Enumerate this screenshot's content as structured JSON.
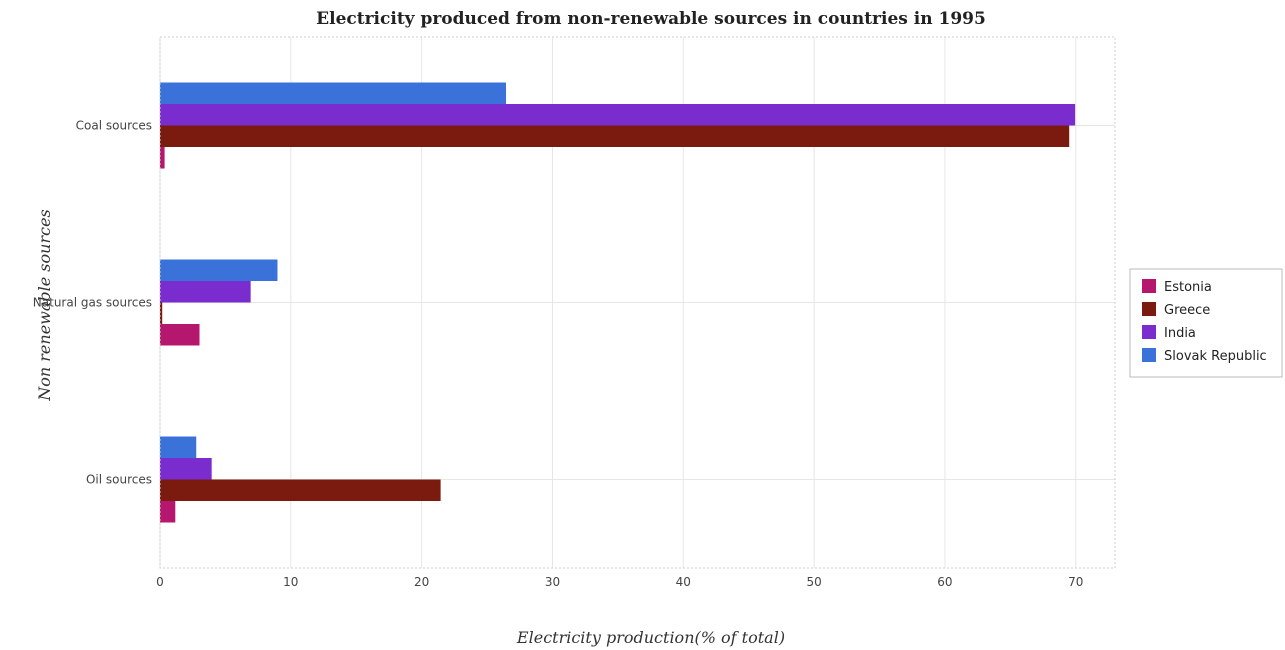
{
  "chart_data": {
    "type": "bar",
    "orientation": "horizontal",
    "title": "Electricity produced from non-renewable sources in countries in 1995",
    "xlabel": "Electricity production(% of total)",
    "ylabel": "Non renewable sources",
    "categories": [
      "Coal sources",
      "Natural gas sources",
      "Oil sources"
    ],
    "series": [
      {
        "name": "Estonia",
        "color": "#b5176e",
        "values": [
          0.35,
          3.02,
          1.17
        ]
      },
      {
        "name": "Greece",
        "color": "#7b1a0f",
        "values": [
          69.5,
          0.17,
          21.45
        ]
      },
      {
        "name": "India",
        "color": "#7a2ccf",
        "values": [
          69.95,
          6.93,
          3.95
        ]
      },
      {
        "name": "Slovak Republic",
        "color": "#3b72d9",
        "values": [
          26.45,
          8.98,
          2.77
        ]
      }
    ],
    "xlim": [
      0,
      73
    ],
    "xticks": [
      0,
      10,
      20,
      30,
      40,
      50,
      60,
      70
    ],
    "grid": true,
    "legend_position": "right"
  }
}
